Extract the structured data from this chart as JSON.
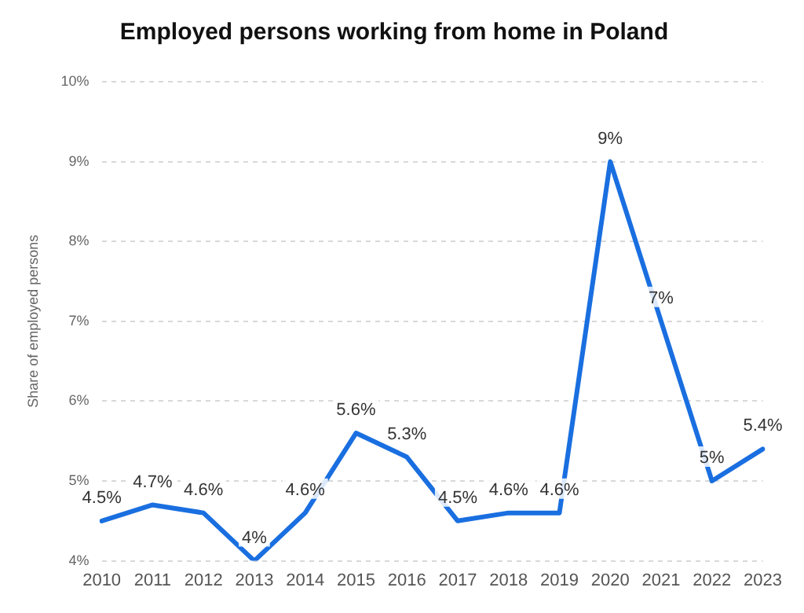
{
  "chart_data": {
    "type": "line",
    "title": "Employed persons working from home in Poland",
    "ylabel": "Share of employed persons",
    "categories": [
      "2010",
      "2011",
      "2012",
      "2013",
      "2014",
      "2015",
      "2016",
      "2017",
      "2018",
      "2019",
      "2020",
      "2021",
      "2022",
      "2023"
    ],
    "series": [
      {
        "color": "#1a6fe0",
        "values": [
          4.5,
          4.7,
          4.6,
          4,
          4.6,
          5.6,
          5.3,
          4.5,
          4.6,
          4.6,
          9,
          7,
          5,
          5.4
        ],
        "value_labels": [
          "4.5%",
          "4.7%",
          "4.6%",
          "4%",
          "4.6%",
          "5.6%",
          "5.3%",
          "4.5%",
          "4.6%",
          "4.6%",
          "9%",
          "7%",
          "5%",
          "5.4%"
        ]
      }
    ],
    "ylim": [
      4,
      10
    ],
    "yticks": [
      {
        "value": 4,
        "label": "4%"
      },
      {
        "value": 5,
        "label": "5%"
      },
      {
        "value": 6,
        "label": "6%"
      },
      {
        "value": 7,
        "label": "7%"
      },
      {
        "value": 8,
        "label": "8%"
      },
      {
        "value": 9,
        "label": "9%"
      },
      {
        "value": 10,
        "label": "10%"
      }
    ],
    "grid": "y",
    "legend": false,
    "marker": "none",
    "line_style": "solid"
  }
}
